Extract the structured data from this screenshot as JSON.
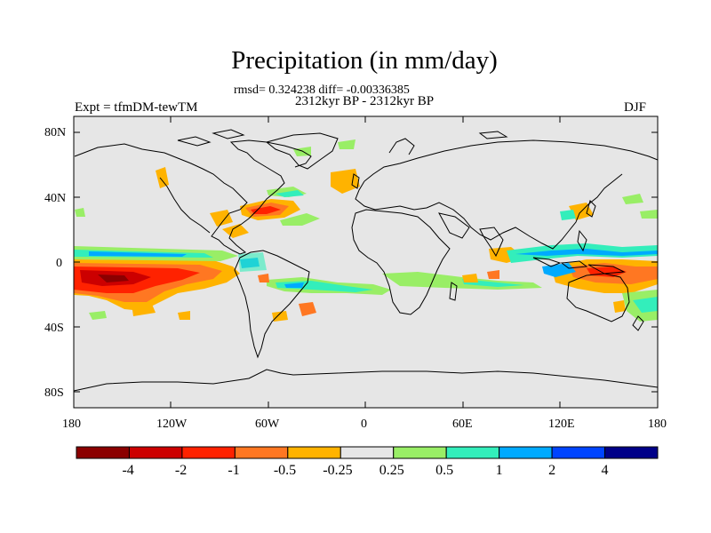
{
  "title": "Precipitation (in mm/day)",
  "stats": "rmsd= 0.324238 diff= -0.00336385",
  "period": "2312kyr BP - 2312kyr BP",
  "experiment": "Expt = tfmDM-tewTM",
  "season": "DJF",
  "lat_labels": [
    "80N",
    "40N",
    "0",
    "40S",
    "80S"
  ],
  "lon_labels": [
    "180",
    "120W",
    "60W",
    "0",
    "60E",
    "120E",
    "180"
  ],
  "colorbar": {
    "colors": [
      "#8b0000",
      "#cc0000",
      "#ff2200",
      "#ff7722",
      "#ffb300",
      "#e6e6e6",
      "#99ee66",
      "#33eebb",
      "#00aaff",
      "#0044ff",
      "#000088"
    ],
    "labels": [
      "-4",
      "-2",
      "-1",
      "-0.5",
      "-0.25",
      "0.25",
      "0.5",
      "1",
      "2",
      "4"
    ]
  },
  "map_colors": {
    "ocean": "#e6e6e6",
    "coast": "#000000"
  }
}
